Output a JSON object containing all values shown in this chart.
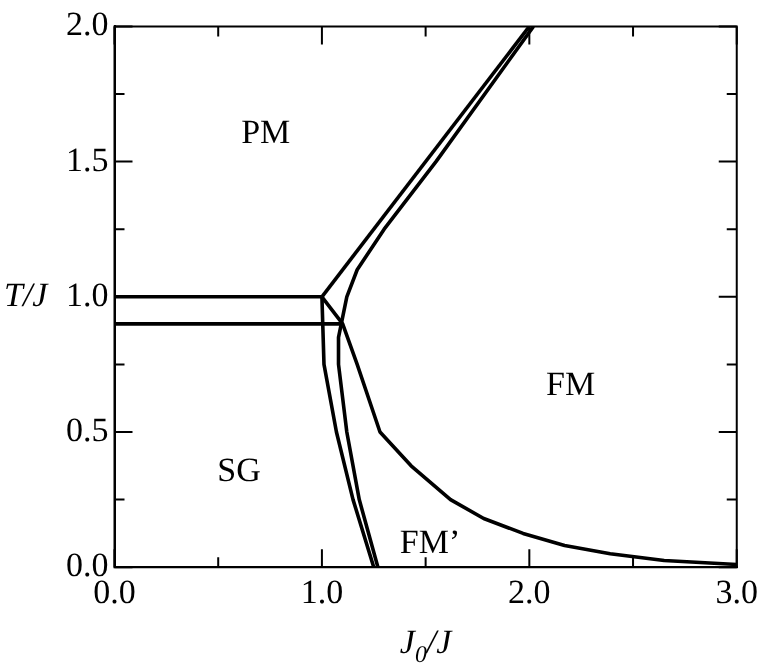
{
  "chart_data": {
    "type": "line",
    "xlabel": "J$_{0}$/J",
    "ylabel": "T/J",
    "xlim": [
      0,
      3
    ],
    "ylim": [
      0,
      2
    ],
    "xticks": [
      {
        "value": 0,
        "label": "0.0"
      },
      {
        "value": 0.5,
        "label": null
      },
      {
        "value": 1,
        "label": "1.0"
      },
      {
        "value": 1.5,
        "label": null
      },
      {
        "value": 2,
        "label": "2.0"
      },
      {
        "value": 2.5,
        "label": null
      },
      {
        "value": 3,
        "label": "3.0"
      }
    ],
    "yticks": [
      {
        "value": 0,
        "label": "0.0"
      },
      {
        "value": 0.25,
        "label": null
      },
      {
        "value": 0.5,
        "label": "0.5"
      },
      {
        "value": 0.75,
        "label": null
      },
      {
        "value": 1,
        "label": "1.0"
      },
      {
        "value": 1.25,
        "label": null
      },
      {
        "value": 1.5,
        "label": "1.5"
      },
      {
        "value": 1.75,
        "label": null
      },
      {
        "value": 2,
        "label": "2.0"
      }
    ],
    "grid": false,
    "legend": false,
    "marker": "none",
    "line_style": "solid",
    "series": [
      {
        "color": "#000000",
        "x": [
          0,
          1
        ],
        "values": [
          1,
          1
        ]
      },
      {
        "color": "#000000",
        "x": [
          1,
          2
        ],
        "values": [
          1,
          2
        ]
      },
      {
        "color": "#000000",
        "x": [
          1,
          1.1,
          1.17,
          1.28,
          1.43,
          1.62,
          1.78,
          1.97,
          2.17,
          2.39,
          2.65,
          3
        ],
        "values": [
          1,
          0.9,
          0.75,
          0.5,
          0.375,
          0.25,
          0.18,
          0.125,
          0.08,
          0.05,
          0.025,
          0.01
        ]
      },
      {
        "color": "#000000",
        "x": [
          1,
          1.01,
          1.07,
          1.15,
          1.25
        ],
        "values": [
          1,
          0.75,
          0.5,
          0.25,
          0
        ]
      },
      {
        "color": "#000000",
        "x": [
          0,
          1.1
        ],
        "values": [
          0.9,
          0.9
        ]
      },
      {
        "color": "#000000",
        "x": [
          2.02,
          1.55,
          1.3,
          1.17,
          1.12,
          1.08,
          1.08,
          1.12,
          1.18,
          1.27
        ],
        "values": [
          2,
          1.5,
          1.25,
          1.1,
          1,
          0.85,
          0.75,
          0.5,
          0.25,
          0
        ]
      }
    ],
    "annotations": [
      "PM",
      "SG",
      "FM",
      "FM’"
    ]
  }
}
